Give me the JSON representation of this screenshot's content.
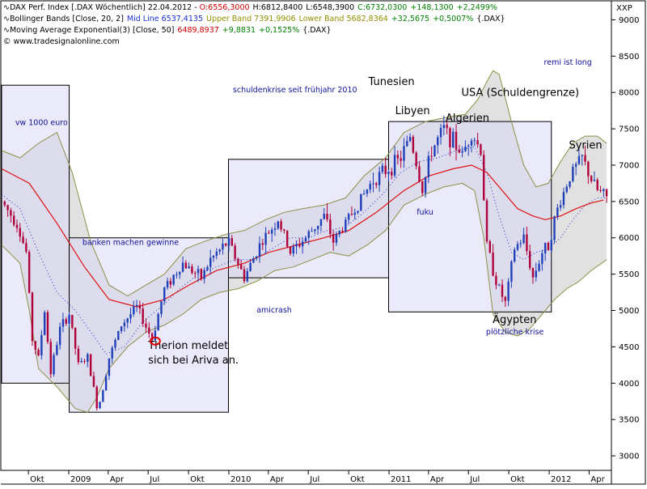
{
  "colors": {
    "price_up": "#1f3fb8",
    "price_down": "#b0003a",
    "ema": "#e01010",
    "bollinger_band": "#8f8f45",
    "mid_line": "#1a2fd0",
    "band_fill": "#c8c8c8",
    "annotation_box_fill": "#d9d9f5",
    "blue_text": "#10109a",
    "green_text": "#008000",
    "red_text": "#d00000",
    "marker": "#e00000"
  },
  "header": {
    "line1": {
      "icon": "sine-wave-icon",
      "title": "DAX Perf. Index [.DAX  Wöchentlich] 22.04.2012 - ",
      "open": "O:6556,3000",
      "high": "H:6812,8400",
      "low": "L:6548,3900",
      "close": "C:6732,0300",
      "change": "+148,1300",
      "change_pct": "+2,2499%"
    },
    "line2": {
      "icon": "sine-wave-icon",
      "name": "Bollinger Bands [Close, 20, 2]",
      "mid": "Mid Line 6537,4135",
      "upper": "Upper Band 7391,9906",
      "lower": "Lower Band 5682,8364",
      "change": "+32,5675",
      "change_pct": "+0,5007%",
      "suffix": "{.DAX}"
    },
    "line3": {
      "icon": "sine-wave-icon",
      "name": "Moving Average Exponential(3) [Close, 50]",
      "value": "6489,8937",
      "change": "+9,8831",
      "change_pct": "+0,1525%",
      "suffix": "{.DAX}"
    },
    "line4": {
      "icon": "copyright-icon",
      "text": "www.tradesignalonline.com"
    }
  },
  "symbol_label": "XXP",
  "chart_data": {
    "type": "line",
    "instrument": "DAX Perf. Index",
    "interval": "Wöchentlich",
    "y_axis_position": "right",
    "ylim": [
      2800,
      9250
    ],
    "yticks": [
      "3000",
      "3500",
      "4000",
      "4500",
      "5000",
      "5500",
      "6000",
      "6500",
      "7000",
      "7500",
      "8000",
      "8500",
      "9000"
    ],
    "x_range": [
      "2008-08-01",
      "2012-05-20"
    ],
    "xticks": [
      {
        "label": "Okt",
        "date": "2008-10-01"
      },
      {
        "label": "2009",
        "date": "2009-01-01"
      },
      {
        "label": "Apr",
        "date": "2009-04-01"
      },
      {
        "label": "Jul",
        "date": "2009-07-01"
      },
      {
        "label": "Okt",
        "date": "2009-10-01"
      },
      {
        "label": "2010",
        "date": "2010-01-01"
      },
      {
        "label": "Apr",
        "date": "2010-04-01"
      },
      {
        "label": "Jul",
        "date": "2010-07-01"
      },
      {
        "label": "Okt",
        "date": "2010-10-01"
      },
      {
        "label": "2011",
        "date": "2011-01-01"
      },
      {
        "label": "Apr",
        "date": "2011-04-01"
      },
      {
        "label": "Jul",
        "date": "2011-07-01"
      },
      {
        "label": "Okt",
        "date": "2011-10-01"
      },
      {
        "label": "2012",
        "date": "2012-01-01"
      },
      {
        "label": "Apr",
        "date": "2012-04-01"
      }
    ],
    "grid": false,
    "price_keypoints": [
      [
        "2008-08-01",
        6500
      ],
      [
        "2008-09-05",
        6200
      ],
      [
        "2008-09-26",
        5800
      ],
      [
        "2008-10-10",
        4600
      ],
      [
        "2008-10-24",
        4350
      ],
      [
        "2008-11-07",
        5000
      ],
      [
        "2008-11-21",
        4150
      ],
      [
        "2008-12-12",
        4750
      ],
      [
        "2009-01-02",
        4950
      ],
      [
        "2009-01-23",
        4250
      ],
      [
        "2009-02-13",
        4350
      ],
      [
        "2009-03-06",
        3700
      ],
      [
        "2009-03-13",
        3750
      ],
      [
        "2009-04-03",
        4350
      ],
      [
        "2009-05-01",
        4800
      ],
      [
        "2009-06-05",
        5050
      ],
      [
        "2009-07-10",
        4600
      ],
      [
        "2009-08-07",
        5300
      ],
      [
        "2009-09-18",
        5650
      ],
      [
        "2009-10-30",
        5450
      ],
      [
        "2009-11-20",
        5700
      ],
      [
        "2009-12-31",
        5950
      ],
      [
        "2010-02-05",
        5450
      ],
      [
        "2010-03-12",
        5900
      ],
      [
        "2010-04-23",
        6250
      ],
      [
        "2010-05-21",
        5800
      ],
      [
        "2010-06-25",
        6000
      ],
      [
        "2010-08-06",
        6300
      ],
      [
        "2010-08-27",
        5950
      ],
      [
        "2010-10-15",
        6400
      ],
      [
        "2010-11-26",
        6800
      ],
      [
        "2010-12-31",
        6950
      ],
      [
        "2011-01-28",
        7100
      ],
      [
        "2011-02-18",
        7400
      ],
      [
        "2011-03-18",
        6650
      ],
      [
        "2011-04-08",
        7200
      ],
      [
        "2011-05-06",
        7500
      ],
      [
        "2011-06-17",
        7150
      ],
      [
        "2011-07-08",
        7450
      ],
      [
        "2011-07-29",
        7200
      ],
      [
        "2011-08-12",
        5900
      ],
      [
        "2011-09-02",
        5400
      ],
      [
        "2011-09-23",
        5100
      ],
      [
        "2011-10-14",
        5850
      ],
      [
        "2011-11-04",
        6000
      ],
      [
        "2011-11-25",
        5450
      ],
      [
        "2011-12-16",
        5800
      ],
      [
        "2011-12-30",
        5900
      ],
      [
        "2012-01-20",
        6400
      ],
      [
        "2012-02-17",
        6850
      ],
      [
        "2012-03-16",
        7100
      ],
      [
        "2012-04-06",
        6800
      ],
      [
        "2012-04-20",
        6650
      ],
      [
        "2012-05-11",
        6550
      ]
    ],
    "series": [
      {
        "name": "Moving Average Exponential(3) [Close, 50]",
        "role": "ema",
        "points": [
          [
            "2008-08-01",
            6950
          ],
          [
            "2008-10-03",
            6750
          ],
          [
            "2008-12-05",
            6200
          ],
          [
            "2009-02-06",
            5600
          ],
          [
            "2009-04-03",
            5150
          ],
          [
            "2009-06-05",
            5050
          ],
          [
            "2009-08-07",
            5150
          ],
          [
            "2009-10-02",
            5350
          ],
          [
            "2009-12-04",
            5550
          ],
          [
            "2010-02-05",
            5650
          ],
          [
            "2010-04-02",
            5800
          ],
          [
            "2010-06-04",
            5900
          ],
          [
            "2010-08-06",
            6000
          ],
          [
            "2010-10-01",
            6100
          ],
          [
            "2010-12-03",
            6350
          ],
          [
            "2011-02-04",
            6650
          ],
          [
            "2011-04-01",
            6850
          ],
          [
            "2011-05-27",
            6950
          ],
          [
            "2011-07-08",
            7000
          ],
          [
            "2011-08-12",
            6900
          ],
          [
            "2011-09-16",
            6650
          ],
          [
            "2011-10-21",
            6400
          ],
          [
            "2011-11-25",
            6300
          ],
          [
            "2011-12-23",
            6250
          ],
          [
            "2012-01-27",
            6300
          ],
          [
            "2012-03-02",
            6400
          ],
          [
            "2012-04-06",
            6480
          ],
          [
            "2012-05-04",
            6520
          ]
        ]
      },
      {
        "name": "Upper Band",
        "role": "upper",
        "points": [
          [
            "2008-08-01",
            7200
          ],
          [
            "2008-09-12",
            7100
          ],
          [
            "2008-10-24",
            7300
          ],
          [
            "2008-12-05",
            7450
          ],
          [
            "2009-01-09",
            6900
          ],
          [
            "2009-02-20",
            5950
          ],
          [
            "2009-04-03",
            5350
          ],
          [
            "2009-05-15",
            5200
          ],
          [
            "2009-06-26",
            5350
          ],
          [
            "2009-08-07",
            5500
          ],
          [
            "2009-09-25",
            5850
          ],
          [
            "2009-11-06",
            5950
          ],
          [
            "2009-12-25",
            6050
          ],
          [
            "2010-02-05",
            6100
          ],
          [
            "2010-03-26",
            6250
          ],
          [
            "2010-05-07",
            6350
          ],
          [
            "2010-06-18",
            6400
          ],
          [
            "2010-08-06",
            6450
          ],
          [
            "2010-09-24",
            6550
          ],
          [
            "2010-11-05",
            6850
          ],
          [
            "2010-12-24",
            7100
          ],
          [
            "2011-02-04",
            7450
          ],
          [
            "2011-03-25",
            7600
          ],
          [
            "2011-05-06",
            7650
          ],
          [
            "2011-06-24",
            7700
          ],
          [
            "2011-07-22",
            7900
          ],
          [
            "2011-08-12",
            8150
          ],
          [
            "2011-08-26",
            8300
          ],
          [
            "2011-09-09",
            8250
          ],
          [
            "2011-10-07",
            7600
          ],
          [
            "2011-11-04",
            7000
          ],
          [
            "2011-12-02",
            6700
          ],
          [
            "2011-12-30",
            6750
          ],
          [
            "2012-01-27",
            7050
          ],
          [
            "2012-02-24",
            7300
          ],
          [
            "2012-03-23",
            7400
          ],
          [
            "2012-04-20",
            7400
          ],
          [
            "2012-05-11",
            7300
          ]
        ]
      },
      {
        "name": "Lower Band",
        "role": "lower",
        "points": [
          [
            "2008-08-01",
            5900
          ],
          [
            "2008-09-12",
            5650
          ],
          [
            "2008-10-03",
            5000
          ],
          [
            "2008-10-24",
            4200
          ],
          [
            "2008-12-05",
            3950
          ],
          [
            "2009-01-16",
            3650
          ],
          [
            "2009-02-13",
            3600
          ],
          [
            "2009-03-06",
            3800
          ],
          [
            "2009-04-03",
            4200
          ],
          [
            "2009-05-15",
            4500
          ],
          [
            "2009-06-26",
            4700
          ],
          [
            "2009-08-07",
            4800
          ],
          [
            "2009-09-18",
            4950
          ],
          [
            "2009-10-30",
            5150
          ],
          [
            "2009-12-11",
            5250
          ],
          [
            "2010-01-22",
            5300
          ],
          [
            "2010-03-05",
            5400
          ],
          [
            "2010-04-16",
            5550
          ],
          [
            "2010-05-28",
            5600
          ],
          [
            "2010-07-09",
            5700
          ],
          [
            "2010-08-20",
            5800
          ],
          [
            "2010-10-01",
            5750
          ],
          [
            "2010-11-12",
            5900
          ],
          [
            "2010-12-24",
            6100
          ],
          [
            "2011-02-04",
            6450
          ],
          [
            "2011-03-25",
            6600
          ],
          [
            "2011-05-06",
            6700
          ],
          [
            "2011-06-17",
            6750
          ],
          [
            "2011-07-15",
            6650
          ],
          [
            "2011-08-05",
            6000
          ],
          [
            "2011-08-26",
            4950
          ],
          [
            "2011-09-23",
            4700
          ],
          [
            "2011-10-21",
            4650
          ],
          [
            "2011-11-18",
            4750
          ],
          [
            "2011-12-16",
            4950
          ],
          [
            "2012-01-13",
            5150
          ],
          [
            "2012-02-10",
            5300
          ],
          [
            "2012-03-09",
            5400
          ],
          [
            "2012-04-06",
            5550
          ],
          [
            "2012-05-11",
            5700
          ]
        ]
      },
      {
        "name": "Mid Line",
        "role": "mid",
        "points": [
          [
            "2008-08-01",
            6600
          ],
          [
            "2008-09-12",
            6400
          ],
          [
            "2008-10-24",
            5800
          ],
          [
            "2008-12-05",
            5250
          ],
          [
            "2009-01-16",
            5000
          ],
          [
            "2009-02-27",
            4650
          ],
          [
            "2009-03-27",
            4400
          ],
          [
            "2009-05-08",
            4500
          ],
          [
            "2009-06-19",
            4850
          ],
          [
            "2009-07-31",
            5050
          ],
          [
            "2009-09-11",
            5300
          ],
          [
            "2009-10-23",
            5500
          ],
          [
            "2009-12-04",
            5600
          ],
          [
            "2010-01-15",
            5700
          ],
          [
            "2010-02-26",
            5700
          ],
          [
            "2010-04-09",
            5850
          ],
          [
            "2010-05-21",
            6000
          ],
          [
            "2010-07-02",
            6000
          ],
          [
            "2010-08-13",
            6100
          ],
          [
            "2010-09-24",
            6150
          ],
          [
            "2010-11-05",
            6350
          ],
          [
            "2010-12-17",
            6600
          ],
          [
            "2011-01-28",
            6900
          ],
          [
            "2011-03-11",
            7050
          ],
          [
            "2011-04-22",
            7100
          ],
          [
            "2011-06-03",
            7200
          ],
          [
            "2011-07-15",
            7250
          ],
          [
            "2011-08-12",
            6900
          ],
          [
            "2011-09-09",
            6300
          ],
          [
            "2011-10-07",
            5800
          ],
          [
            "2011-11-04",
            5700
          ],
          [
            "2011-12-02",
            5800
          ],
          [
            "2011-12-30",
            5850
          ],
          [
            "2012-01-27",
            6000
          ],
          [
            "2012-02-24",
            6250
          ],
          [
            "2012-03-23",
            6450
          ],
          [
            "2012-04-20",
            6550
          ],
          [
            "2012-05-11",
            6550
          ]
        ]
      }
    ],
    "annotation_boxes": [
      {
        "x0": "2008-08-01",
        "x1": "2009-01-02",
        "y0": 4000,
        "y1": 8100
      },
      {
        "x0": "2009-01-02",
        "x1": "2009-12-31",
        "y0": 3600,
        "y1": 6000
      },
      {
        "x0": "2009-12-31",
        "x1": "2010-12-31",
        "y0": 5450,
        "y1": 7080
      },
      {
        "x0": "2010-12-31",
        "x1": "2012-01-06",
        "y0": 4980,
        "y1": 7600
      }
    ],
    "annotations": [
      {
        "text": "vw 1000 euro",
        "x": "2008-09-01",
        "y": 7550,
        "color": "blue",
        "size": "small"
      },
      {
        "text": "banken machen gewinne",
        "x": "2009-02-01",
        "y": 5900,
        "color": "blue",
        "size": "small"
      },
      {
        "text": "Therion meldet",
        "x": "2009-07-01",
        "y": 4470,
        "color": "black",
        "size": "large"
      },
      {
        "text": "sich bei Ariva an.",
        "x": "2009-07-01",
        "y": 4270,
        "color": "black",
        "size": "large"
      },
      {
        "text": "schuldenkrise seit frühjahr 2010",
        "x": "2010-01-10",
        "y": 8000,
        "color": "blue",
        "size": "small"
      },
      {
        "text": "amicrash",
        "x": "2010-03-05",
        "y": 4970,
        "color": "blue",
        "size": "small"
      },
      {
        "text": "Tunesien",
        "x": "2010-11-15",
        "y": 8100,
        "color": "black",
        "size": "large"
      },
      {
        "text": "Libyen",
        "x": "2011-01-15",
        "y": 7700,
        "color": "black",
        "size": "large"
      },
      {
        "text": "fuku",
        "x": "2011-03-05",
        "y": 6320,
        "color": "blue",
        "size": "small"
      },
      {
        "text": "USA (Schuldengrenze)",
        "x": "2011-06-15",
        "y": 7950,
        "color": "black",
        "size": "large"
      },
      {
        "text": "Algerien",
        "x": "2011-05-10",
        "y": 7600,
        "color": "black",
        "size": "large"
      },
      {
        "text": "remi ist long",
        "x": "2011-12-20",
        "y": 8380,
        "color": "blue",
        "size": "small"
      },
      {
        "text": "Syrien",
        "x": "2012-02-15",
        "y": 7230,
        "color": "black",
        "size": "large"
      },
      {
        "text": "Ägypten",
        "x": "2011-08-25",
        "y": 4830,
        "color": "black",
        "size": "large"
      },
      {
        "text": "plötzliche krise",
        "x": "2011-08-10",
        "y": 4670,
        "color": "blue",
        "size": "small"
      }
    ],
    "marker": {
      "x": "2009-07-17",
      "y": 4580,
      "shape": "circle"
    }
  }
}
